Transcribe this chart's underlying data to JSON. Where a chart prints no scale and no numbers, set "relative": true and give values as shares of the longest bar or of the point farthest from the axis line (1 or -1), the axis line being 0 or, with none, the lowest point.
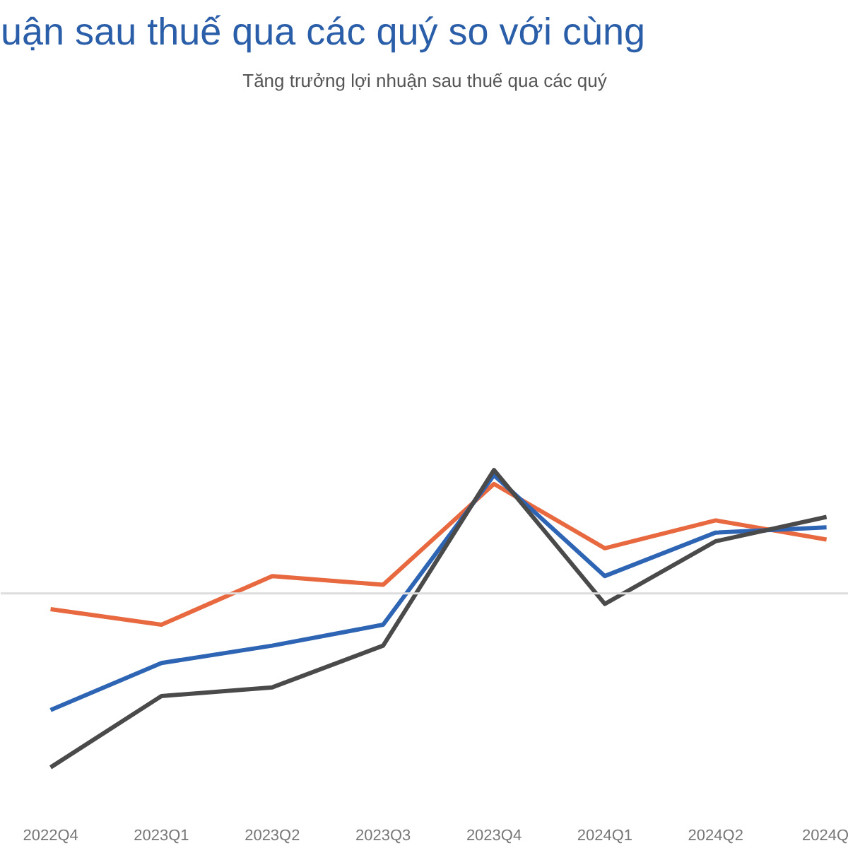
{
  "chart_data": {
    "type": "line",
    "relative": true,
    "title": "uận sau thuế qua các quý so với cùng",
    "subtitle": "Tăng trưởng lợi nhuận sau thuế qua các quý",
    "categories": [
      "2022Q4",
      "2023Q1",
      "2023Q2",
      "2023Q3",
      "2023Q4",
      "2024Q1",
      "2024Q2",
      "2024Q"
    ],
    "series": [
      {
        "color": "#e8693f",
        "values": [
          -0.09,
          -0.18,
          0.1,
          0.05,
          0.63,
          0.26,
          0.42,
          0.31
        ]
      },
      {
        "color": "#2e64b4",
        "values": [
          -0.67,
          -0.4,
          -0.3,
          -0.18,
          0.68,
          0.1,
          0.35,
          0.38
        ]
      },
      {
        "color": "#4a4a4a",
        "values": [
          -1,
          -0.59,
          -0.54,
          -0.3,
          0.71,
          -0.06,
          0.3,
          0.44
        ]
      }
    ],
    "ref_lines": [
      {
        "axis": "y",
        "value": 0,
        "label": null,
        "color": "#dddddd"
      }
    ],
    "grid": false,
    "marker": "none",
    "line_style": "solid"
  }
}
